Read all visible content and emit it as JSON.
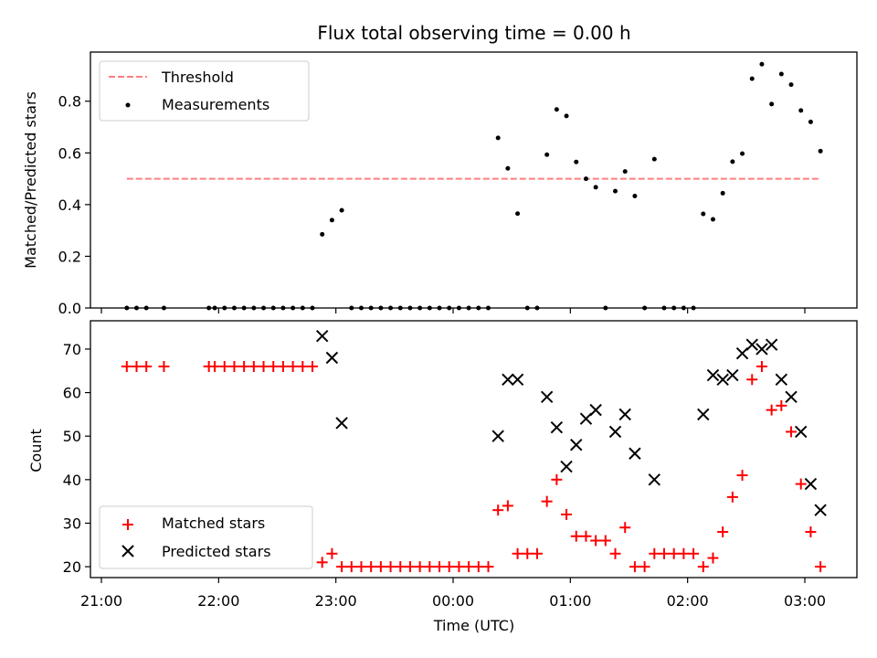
{
  "chart_data": [
    {
      "type": "scatter",
      "title": "Flux total observing time = 0.00 h",
      "xlabel": "",
      "ylabel": "Matched/Predicted stars",
      "ylim": [
        0,
        0.99
      ],
      "yticks": [
        "0.0",
        "0.2",
        "0.4",
        "0.6",
        "0.8"
      ],
      "grid": false,
      "legend_position": "top-left",
      "threshold": {
        "name": "Threshold",
        "value": 0.5,
        "x_range": [
          21.22,
          3.12
        ],
        "color": "#ff7f7f"
      },
      "series": [
        {
          "name": "Measurements",
          "marker": "dot",
          "color": "#000000",
          "points": [
            [
              "21:13",
              0
            ],
            [
              "21:18",
              0
            ],
            [
              "21:23",
              0
            ],
            [
              "21:32",
              0
            ],
            [
              "21:55",
              0
            ],
            [
              "21:58",
              0
            ],
            [
              "22:03",
              0
            ],
            [
              "22:08",
              0
            ],
            [
              "22:13",
              0
            ],
            [
              "22:18",
              0
            ],
            [
              "22:23",
              0
            ],
            [
              "22:28",
              0
            ],
            [
              "22:33",
              0
            ],
            [
              "22:38",
              0
            ],
            [
              "22:43",
              0
            ],
            [
              "22:48",
              0
            ],
            [
              "22:53",
              0.285
            ],
            [
              "22:58",
              0.34
            ],
            [
              "23:03",
              0.378
            ],
            [
              "23:08",
              0
            ],
            [
              "23:13",
              0
            ],
            [
              "23:18",
              0
            ],
            [
              "23:23",
              0
            ],
            [
              "23:28",
              0
            ],
            [
              "23:33",
              0
            ],
            [
              "23:38",
              0
            ],
            [
              "23:43",
              0
            ],
            [
              "23:48",
              0
            ],
            [
              "23:53",
              0
            ],
            [
              "23:58",
              0
            ],
            [
              "00:03",
              0
            ],
            [
              "00:08",
              0
            ],
            [
              "00:13",
              0
            ],
            [
              "00:18",
              0
            ],
            [
              "00:23",
              0.658
            ],
            [
              "00:28",
              0.54
            ],
            [
              "00:33",
              0.365
            ],
            [
              "00:38",
              0
            ],
            [
              "00:43",
              0
            ],
            [
              "00:48",
              0.593
            ],
            [
              "00:53",
              0.768
            ],
            [
              "00:58",
              0.743
            ],
            [
              "01:03",
              0.565
            ],
            [
              "01:08",
              0.5
            ],
            [
              "01:13",
              0.467
            ],
            [
              "01:18",
              0
            ],
            [
              "01:23",
              0.452
            ],
            [
              "01:28",
              0.528
            ],
            [
              "01:33",
              0.433
            ],
            [
              "01:38",
              0
            ],
            [
              "01:43",
              0.576
            ],
            [
              "01:48",
              0
            ],
            [
              "01:53",
              0
            ],
            [
              "01:58",
              0
            ],
            [
              "02:03",
              0
            ],
            [
              "02:08",
              0.364
            ],
            [
              "02:13",
              0.343
            ],
            [
              "02:18",
              0.444
            ],
            [
              "02:23",
              0.566
            ],
            [
              "02:28",
              0.597
            ],
            [
              "02:33",
              0.887
            ],
            [
              "02:38",
              0.943
            ],
            [
              "02:43",
              0.789
            ],
            [
              "02:48",
              0.905
            ],
            [
              "02:53",
              0.864
            ],
            [
              "02:58",
              0.764
            ],
            [
              "03:03",
              0.72
            ],
            [
              "03:08",
              0.607
            ]
          ]
        }
      ]
    },
    {
      "type": "scatter",
      "title": "",
      "xlabel": "Time (UTC)",
      "ylabel": "Count",
      "ylim": [
        17.5,
        76.5
      ],
      "yticks": [
        "20",
        "30",
        "40",
        "50",
        "60",
        "70"
      ],
      "xticks": [
        "21:00",
        "22:00",
        "23:00",
        "00:00",
        "01:00",
        "02:00",
        "03:00"
      ],
      "grid": false,
      "legend_position": "bottom-left",
      "series": [
        {
          "name": "Matched stars",
          "marker": "plus",
          "color": "#ff0000",
          "points": [
            [
              "21:13",
              66
            ],
            [
              "21:18",
              66
            ],
            [
              "21:23",
              66
            ],
            [
              "21:32",
              66
            ],
            [
              "21:55",
              66
            ],
            [
              "21:58",
              66
            ],
            [
              "22:03",
              66
            ],
            [
              "22:08",
              66
            ],
            [
              "22:13",
              66
            ],
            [
              "22:18",
              66
            ],
            [
              "22:23",
              66
            ],
            [
              "22:28",
              66
            ],
            [
              "22:33",
              66
            ],
            [
              "22:38",
              66
            ],
            [
              "22:43",
              66
            ],
            [
              "22:48",
              66
            ],
            [
              "22:53",
              21
            ],
            [
              "22:58",
              23
            ],
            [
              "23:03",
              20
            ],
            [
              "23:08",
              20
            ],
            [
              "23:13",
              20
            ],
            [
              "23:18",
              20
            ],
            [
              "23:23",
              20
            ],
            [
              "23:28",
              20
            ],
            [
              "23:33",
              20
            ],
            [
              "23:38",
              20
            ],
            [
              "23:43",
              20
            ],
            [
              "23:48",
              20
            ],
            [
              "23:53",
              20
            ],
            [
              "23:58",
              20
            ],
            [
              "00:03",
              20
            ],
            [
              "00:08",
              20
            ],
            [
              "00:13",
              20
            ],
            [
              "00:18",
              20
            ],
            [
              "00:23",
              33
            ],
            [
              "00:28",
              34
            ],
            [
              "00:33",
              23
            ],
            [
              "00:38",
              23
            ],
            [
              "00:43",
              23
            ],
            [
              "00:48",
              35
            ],
            [
              "00:53",
              40
            ],
            [
              "00:58",
              32
            ],
            [
              "01:03",
              27
            ],
            [
              "01:08",
              27
            ],
            [
              "01:13",
              26
            ],
            [
              "01:18",
              26
            ],
            [
              "01:23",
              23
            ],
            [
              "01:28",
              29
            ],
            [
              "01:33",
              20
            ],
            [
              "01:38",
              20
            ],
            [
              "01:43",
              23
            ],
            [
              "01:48",
              23
            ],
            [
              "01:53",
              23
            ],
            [
              "01:58",
              23
            ],
            [
              "02:03",
              23
            ],
            [
              "02:08",
              20
            ],
            [
              "02:13",
              22
            ],
            [
              "02:18",
              28
            ],
            [
              "02:23",
              36
            ],
            [
              "02:28",
              41
            ],
            [
              "02:33",
              63
            ],
            [
              "02:38",
              66
            ],
            [
              "02:43",
              56
            ],
            [
              "02:48",
              57
            ],
            [
              "02:53",
              51
            ],
            [
              "02:58",
              39
            ],
            [
              "03:03",
              28
            ],
            [
              "03:08",
              20
            ]
          ]
        },
        {
          "name": "Predicted stars",
          "marker": "x",
          "color": "#000000",
          "points": [
            [
              "22:53",
              73
            ],
            [
              "22:58",
              68
            ],
            [
              "23:03",
              53
            ],
            [
              "00:23",
              50
            ],
            [
              "00:28",
              63
            ],
            [
              "00:33",
              63
            ],
            [
              "00:48",
              59
            ],
            [
              "00:53",
              52
            ],
            [
              "00:58",
              43
            ],
            [
              "01:03",
              48
            ],
            [
              "01:08",
              54
            ],
            [
              "01:13",
              56
            ],
            [
              "01:23",
              51
            ],
            [
              "01:28",
              55
            ],
            [
              "01:33",
              46
            ],
            [
              "01:43",
              40
            ],
            [
              "02:08",
              55
            ],
            [
              "02:13",
              64
            ],
            [
              "02:18",
              63
            ],
            [
              "02:23",
              64
            ],
            [
              "02:28",
              69
            ],
            [
              "02:33",
              71
            ],
            [
              "02:38",
              70
            ],
            [
              "02:43",
              71
            ],
            [
              "02:48",
              63
            ],
            [
              "02:53",
              59
            ],
            [
              "02:58",
              51
            ],
            [
              "03:03",
              39
            ],
            [
              "03:08",
              33
            ]
          ]
        }
      ]
    }
  ]
}
